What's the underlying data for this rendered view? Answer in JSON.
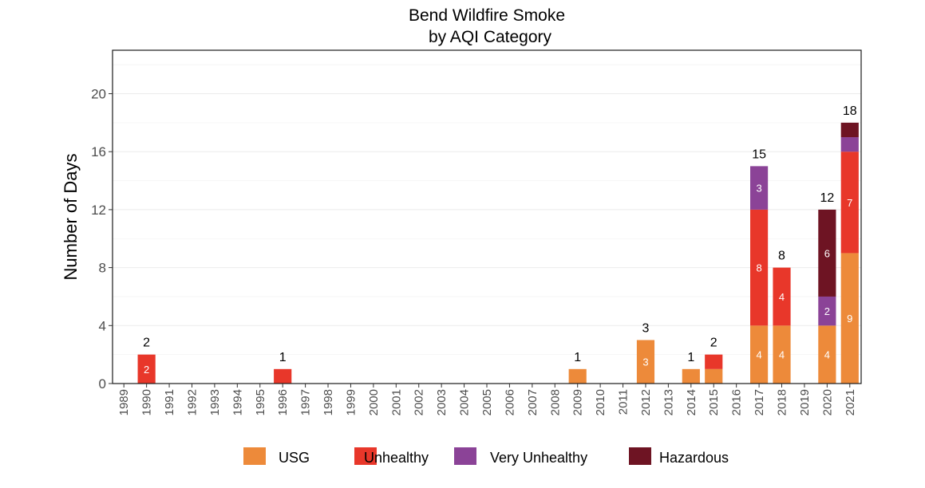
{
  "chart_data": {
    "type": "bar",
    "stacked": true,
    "title": [
      "Bend Wildfire Smoke",
      "by AQI Category"
    ],
    "xlabel": "",
    "ylabel": "Number of Days",
    "ylim": [
      0,
      23
    ],
    "yticks": [
      0,
      4,
      8,
      12,
      16,
      20
    ],
    "grid": true,
    "legend_position": "bottom",
    "categories": [
      "1989",
      "1990",
      "1991",
      "1992",
      "1993",
      "1994",
      "1995",
      "1996",
      "1997",
      "1998",
      "1999",
      "2000",
      "2001",
      "2002",
      "2003",
      "2004",
      "2005",
      "2006",
      "2007",
      "2008",
      "2009",
      "2010",
      "2011",
      "2012",
      "2013",
      "2014",
      "2015",
      "2016",
      "2017",
      "2018",
      "2019",
      "2020",
      "2021"
    ],
    "series": [
      {
        "name": "USG",
        "color": "#ED8A3A",
        "values": [
          0,
          0,
          0,
          0,
          0,
          0,
          0,
          0,
          0,
          0,
          0,
          0,
          0,
          0,
          0,
          0,
          0,
          0,
          0,
          0,
          1,
          0,
          0,
          3,
          0,
          1,
          1,
          0,
          4,
          4,
          0,
          4,
          9
        ],
        "labels": [
          null,
          null,
          null,
          null,
          null,
          null,
          null,
          null,
          null,
          null,
          null,
          null,
          null,
          null,
          null,
          null,
          null,
          null,
          null,
          null,
          null,
          null,
          null,
          "3",
          null,
          null,
          null,
          null,
          "4",
          "4",
          null,
          "4",
          "9"
        ]
      },
      {
        "name": "Unhealthy",
        "color": "#E8372A",
        "values": [
          0,
          2,
          0,
          0,
          0,
          0,
          0,
          1,
          0,
          0,
          0,
          0,
          0,
          0,
          0,
          0,
          0,
          0,
          0,
          0,
          0,
          0,
          0,
          0,
          0,
          0,
          1,
          0,
          8,
          4,
          0,
          0,
          7
        ],
        "labels": [
          null,
          "2",
          null,
          null,
          null,
          null,
          null,
          null,
          null,
          null,
          null,
          null,
          null,
          null,
          null,
          null,
          null,
          null,
          null,
          null,
          null,
          null,
          null,
          null,
          null,
          null,
          null,
          null,
          "8",
          "4",
          null,
          null,
          "7"
        ]
      },
      {
        "name": "Very Unhealthy",
        "color": "#8B4397",
        "values": [
          0,
          0,
          0,
          0,
          0,
          0,
          0,
          0,
          0,
          0,
          0,
          0,
          0,
          0,
          0,
          0,
          0,
          0,
          0,
          0,
          0,
          0,
          0,
          0,
          0,
          0,
          0,
          0,
          3,
          0,
          0,
          2,
          1
        ],
        "labels": [
          null,
          null,
          null,
          null,
          null,
          null,
          null,
          null,
          null,
          null,
          null,
          null,
          null,
          null,
          null,
          null,
          null,
          null,
          null,
          null,
          null,
          null,
          null,
          null,
          null,
          null,
          null,
          null,
          "3",
          null,
          null,
          "2",
          null
        ]
      },
      {
        "name": "Hazardous",
        "color": "#6E1423",
        "values": [
          0,
          0,
          0,
          0,
          0,
          0,
          0,
          0,
          0,
          0,
          0,
          0,
          0,
          0,
          0,
          0,
          0,
          0,
          0,
          0,
          0,
          0,
          0,
          0,
          0,
          0,
          0,
          0,
          0,
          0,
          0,
          6,
          1
        ],
        "labels": [
          null,
          null,
          null,
          null,
          null,
          null,
          null,
          null,
          null,
          null,
          null,
          null,
          null,
          null,
          null,
          null,
          null,
          null,
          null,
          null,
          null,
          null,
          null,
          null,
          null,
          null,
          null,
          null,
          null,
          null,
          null,
          "6",
          null
        ]
      }
    ],
    "totals": [
      null,
      "2",
      null,
      null,
      null,
      null,
      null,
      "1",
      null,
      null,
      null,
      null,
      null,
      null,
      null,
      null,
      null,
      null,
      null,
      null,
      "1",
      null,
      null,
      "3",
      null,
      "1",
      "2",
      null,
      "15",
      "8",
      null,
      "12",
      "18"
    ]
  }
}
